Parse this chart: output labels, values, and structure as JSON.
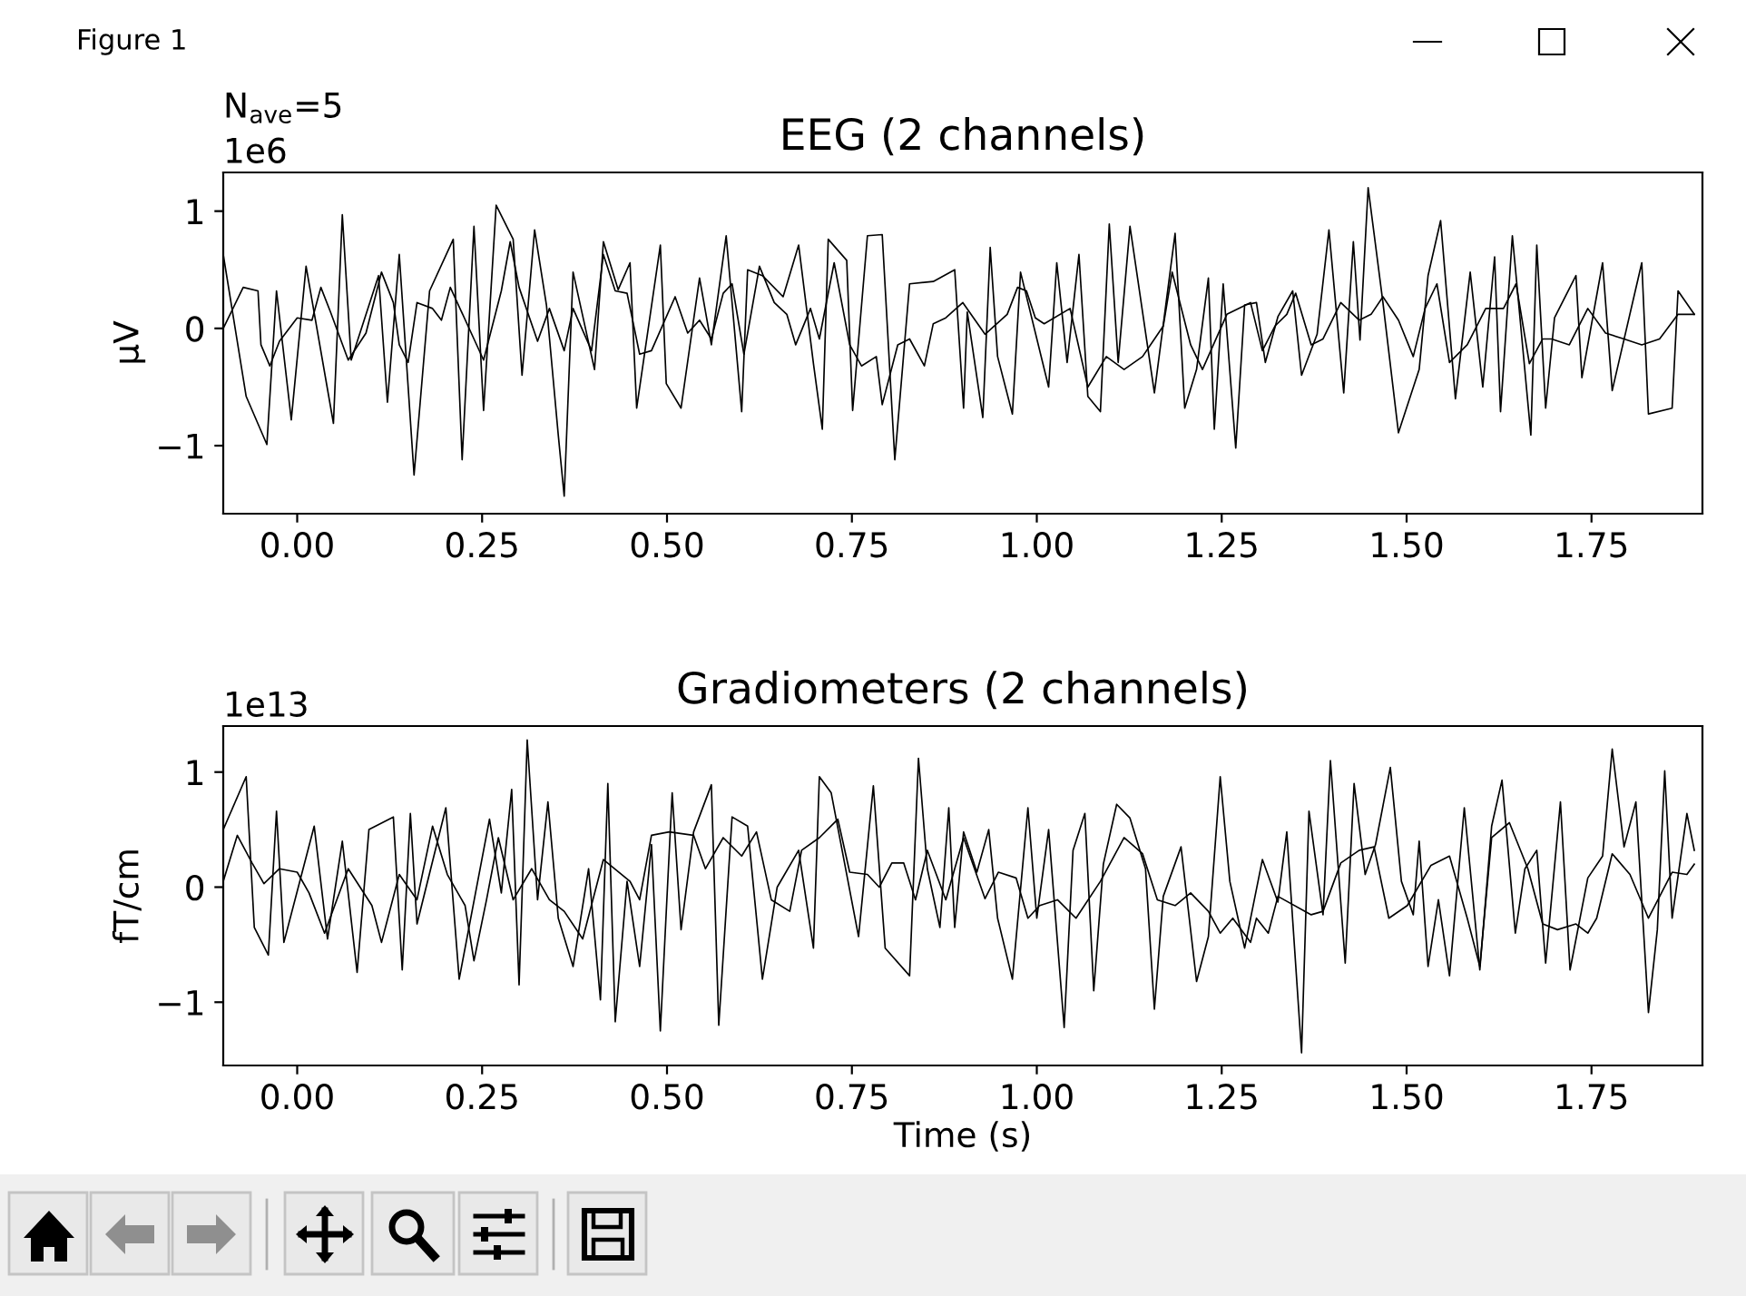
{
  "chart_data": [
    {
      "type": "line",
      "title": "EEG (2 channels)",
      "ylabel": "µV",
      "annotations": [
        "Figure 1",
        "N$_{ave}$=5",
        "1e6"
      ],
      "xlim": [
        -0.1,
        1.9
      ],
      "ylim": [
        -1.58,
        1.33
      ],
      "xticks": [
        {
          "value": 0,
          "label": "0.00"
        },
        {
          "value": 0.25,
          "label": "0.25"
        },
        {
          "value": 0.5,
          "label": "0.50"
        },
        {
          "value": 0.75,
          "label": "0.75"
        },
        {
          "value": 1,
          "label": "1.00"
        },
        {
          "value": 1.25,
          "label": "1.25"
        },
        {
          "value": 1.5,
          "label": "1.50"
        },
        {
          "value": 1.75,
          "label": "1.75"
        }
      ],
      "yticks": [
        {
          "value": -1,
          "label": "−1"
        },
        0,
        1
      ],
      "series": [
        {
          "color": "#000000",
          "x": [
            -0.1,
            -0.069,
            -0.041,
            -0.028,
            -0.008,
            0.012,
            0.049,
            0.061,
            0.073,
            0.11,
            0.122,
            0.138,
            0.158,
            0.179,
            0.211,
            0.223,
            0.239,
            0.252,
            0.269,
            0.292,
            0.304,
            0.321,
            0.337,
            0.353,
            0.361,
            0.373,
            0.402,
            0.414,
            0.434,
            0.45,
            0.459,
            0.491,
            0.499,
            0.519,
            0.544,
            0.56,
            0.58,
            0.601,
            0.609,
            0.629,
            0.657,
            0.678,
            0.698,
            0.71,
            0.718,
            0.743,
            0.751,
            0.771,
            0.791,
            0.808,
            0.828,
            0.86,
            0.889,
            0.901,
            0.906,
            0.927,
            0.937,
            0.947,
            0.967,
            0.978,
            1.016,
            1.027,
            1.041,
            1.057,
            1.069,
            1.086,
            1.098,
            1.11,
            1.126,
            1.159,
            1.187,
            1.2,
            1.216,
            1.232,
            1.24,
            1.252,
            1.269,
            1.281,
            1.297,
            1.309,
            1.326,
            1.346,
            1.358,
            1.379,
            1.395,
            1.415,
            1.428,
            1.437,
            1.448,
            1.468,
            1.489,
            1.517,
            1.529,
            1.546,
            1.566,
            1.586,
            1.603,
            1.619,
            1.627,
            1.643,
            1.668,
            1.676,
            1.688,
            1.7,
            1.729,
            1.737,
            1.765,
            1.778,
            1.818,
            1.827,
            1.859,
            1.867,
            1.889
          ],
          "values": [
            0.63,
            -0.58,
            -0.99,
            0.32,
            -0.78,
            0.53,
            -0.81,
            0.97,
            -0.27,
            0.45,
            -0.63,
            0.63,
            -1.25,
            0.32,
            0.76,
            -1.12,
            0.87,
            -0.7,
            1.05,
            0.76,
            -0.4,
            0.84,
            0.2,
            -0.91,
            -1.43,
            0.48,
            -0.35,
            0.74,
            0.33,
            0.56,
            -0.68,
            0.71,
            -0.47,
            -0.68,
            0.43,
            -0.14,
            0.79,
            -0.71,
            0.5,
            0.45,
            0.27,
            0.71,
            -0.3,
            -0.86,
            0.76,
            0.58,
            -0.7,
            0.79,
            0.8,
            -1.12,
            0.38,
            0.4,
            0.5,
            -0.68,
            0.14,
            -0.76,
            0.69,
            -0.24,
            -0.73,
            0.48,
            -0.5,
            0.56,
            -0.29,
            0.63,
            -0.58,
            -0.71,
            0.89,
            -0.29,
            0.87,
            -0.55,
            0.81,
            -0.68,
            -0.35,
            0.43,
            -0.86,
            0.38,
            -1.02,
            0.2,
            0.22,
            -0.29,
            0.1,
            0.32,
            -0.4,
            -0.05,
            0.84,
            -0.55,
            0.74,
            -0.1,
            1.2,
            0.22,
            -0.89,
            -0.35,
            0.45,
            0.92,
            -0.6,
            0.48,
            -0.5,
            0.61,
            -0.71,
            0.79,
            -0.91,
            0.71,
            -0.68,
            0.09,
            0.45,
            -0.42,
            0.56,
            -0.53,
            0.56,
            -0.73,
            -0.68,
            0.32,
            0.12
          ]
        },
        {
          "color": "#000000",
          "x": [
            -0.1,
            -0.073,
            -0.053,
            -0.049,
            -0.037,
            -0.024,
            0.0,
            0.02,
            0.032,
            0.045,
            0.069,
            0.093,
            0.114,
            0.13,
            0.138,
            0.15,
            0.162,
            0.183,
            0.195,
            0.207,
            0.239,
            0.252,
            0.276,
            0.288,
            0.3,
            0.325,
            0.341,
            0.361,
            0.373,
            0.398,
            0.414,
            0.43,
            0.446,
            0.463,
            0.479,
            0.495,
            0.511,
            0.528,
            0.544,
            0.56,
            0.576,
            0.588,
            0.604,
            0.625,
            0.645,
            0.662,
            0.674,
            0.694,
            0.706,
            0.726,
            0.747,
            0.763,
            0.783,
            0.791,
            0.812,
            0.828,
            0.848,
            0.86,
            0.877,
            0.9,
            0.93,
            0.96,
            0.974,
            0.986,
            0.998,
            1.01,
            1.045,
            1.069,
            1.094,
            1.118,
            1.143,
            1.171,
            1.183,
            1.208,
            1.224,
            1.257,
            1.289,
            1.305,
            1.322,
            1.338,
            1.35,
            1.371,
            1.387,
            1.411,
            1.436,
            1.452,
            1.468,
            1.489,
            1.509,
            1.525,
            1.541,
            1.558,
            1.582,
            1.607,
            1.631,
            1.648,
            1.666,
            1.684,
            1.696,
            1.72,
            1.745,
            1.769,
            1.794,
            1.818,
            1.842,
            1.867,
            1.889
          ],
          "values": [
            0.0,
            0.35,
            0.32,
            -0.14,
            -0.32,
            -0.11,
            0.09,
            0.07,
            0.35,
            0.14,
            -0.27,
            -0.04,
            0.48,
            0.22,
            -0.14,
            -0.29,
            0.22,
            0.17,
            0.07,
            0.35,
            -0.09,
            -0.27,
            0.32,
            0.74,
            0.35,
            -0.11,
            0.17,
            -0.19,
            0.17,
            -0.19,
            0.63,
            0.32,
            0.3,
            -0.22,
            -0.19,
            0.04,
            0.27,
            -0.04,
            0.07,
            -0.09,
            0.3,
            0.38,
            -0.22,
            0.53,
            0.22,
            0.12,
            -0.14,
            0.17,
            -0.09,
            0.56,
            -0.14,
            -0.32,
            -0.24,
            -0.65,
            -0.14,
            -0.09,
            -0.32,
            0.04,
            0.09,
            0.22,
            -0.05,
            0.12,
            0.35,
            0.32,
            0.09,
            0.04,
            0.17,
            -0.5,
            -0.24,
            -0.35,
            -0.24,
            0.02,
            0.48,
            -0.14,
            -0.35,
            0.12,
            0.22,
            -0.19,
            0.02,
            0.12,
            0.3,
            -0.14,
            -0.09,
            0.22,
            0.07,
            0.12,
            0.27,
            0.07,
            -0.24,
            0.17,
            0.38,
            -0.29,
            -0.14,
            0.17,
            0.17,
            0.38,
            -0.3,
            -0.09,
            -0.09,
            -0.14,
            0.17,
            -0.04,
            -0.09,
            -0.14,
            -0.09,
            0.12,
            0.12
          ]
        }
      ]
    },
    {
      "type": "line",
      "title": "Gradiometers (2 channels)",
      "xlabel": "Time (s)",
      "ylabel": "fT/cm",
      "annotations": [
        "1e13"
      ],
      "xlim": [
        -0.1,
        1.9
      ],
      "ylim": [
        -1.55,
        1.4
      ],
      "xticks": [
        {
          "value": 0,
          "label": "0.00"
        },
        {
          "value": 0.25,
          "label": "0.25"
        },
        {
          "value": 0.5,
          "label": "0.50"
        },
        {
          "value": 0.75,
          "label": "0.75"
        },
        {
          "value": 1,
          "label": "1.00"
        },
        {
          "value": 1.25,
          "label": "1.25"
        },
        {
          "value": 1.5,
          "label": "1.50"
        },
        {
          "value": 1.75,
          "label": "1.75"
        }
      ],
      "yticks": [
        {
          "value": -1,
          "label": "−1"
        },
        0,
        1
      ],
      "series": [
        {
          "color": "#000000",
          "x": [
            -0.1,
            -0.069,
            -0.058,
            -0.039,
            -0.028,
            -0.018,
            0.023,
            0.041,
            0.061,
            0.081,
            0.097,
            0.13,
            0.142,
            0.153,
            0.162,
            0.201,
            0.219,
            0.26,
            0.276,
            0.29,
            0.3,
            0.311,
            0.325,
            0.339,
            0.353,
            0.373,
            0.394,
            0.41,
            0.42,
            0.43,
            0.446,
            0.463,
            0.479,
            0.491,
            0.507,
            0.519,
            0.536,
            0.56,
            0.57,
            0.588,
            0.609,
            0.629,
            0.649,
            0.678,
            0.698,
            0.706,
            0.722,
            0.759,
            0.779,
            0.795,
            0.828,
            0.84,
            0.852,
            0.869,
            0.881,
            0.889,
            0.901,
            0.919,
            0.935,
            0.947,
            0.967,
            0.988,
            1.0,
            1.016,
            1.037,
            1.049,
            1.065,
            1.077,
            1.09,
            1.108,
            1.126,
            1.147,
            1.159,
            1.171,
            1.195,
            1.216,
            1.232,
            1.248,
            1.261,
            1.281,
            1.305,
            1.326,
            1.338,
            1.358,
            1.368,
            1.387,
            1.397,
            1.417,
            1.429,
            1.444,
            1.458,
            1.478,
            1.493,
            1.509,
            1.517,
            1.529,
            1.543,
            1.558,
            1.578,
            1.599,
            1.615,
            1.629,
            1.647,
            1.66,
            1.676,
            1.688,
            1.708,
            1.721,
            1.745,
            1.765,
            1.778,
            1.794,
            1.81,
            1.827,
            1.839,
            1.849,
            1.859,
            1.879,
            1.889
          ],
          "values": [
            0.5,
            0.96,
            -0.35,
            -0.59,
            0.66,
            -0.48,
            0.53,
            -0.45,
            0.4,
            -0.74,
            0.5,
            0.61,
            -0.72,
            0.64,
            -0.32,
            0.69,
            -0.8,
            0.59,
            -0.05,
            0.85,
            -0.85,
            1.28,
            -0.11,
            0.74,
            -0.27,
            -0.69,
            0.16,
            -0.98,
            0.9,
            -1.17,
            0.05,
            -0.69,
            0.37,
            -1.25,
            0.82,
            -0.37,
            0.48,
            0.89,
            -1.2,
            0.61,
            0.53,
            -0.8,
            0.0,
            0.32,
            -0.53,
            0.96,
            0.82,
            -0.43,
            0.88,
            -0.53,
            -0.77,
            1.12,
            0.16,
            -0.35,
            0.69,
            -0.35,
            0.48,
            0.13,
            0.5,
            -0.27,
            -0.8,
            0.69,
            -0.27,
            0.5,
            -1.22,
            0.32,
            0.64,
            -0.9,
            0.2,
            0.72,
            0.6,
            0.16,
            -1.06,
            -0.08,
            0.35,
            -0.82,
            -0.43,
            0.96,
            0.05,
            -0.53,
            0.24,
            -0.13,
            0.48,
            -1.44,
            0.66,
            -0.24,
            1.1,
            -0.66,
            0.9,
            0.11,
            0.37,
            1.04,
            0.05,
            -0.24,
            0.4,
            -0.69,
            -0.11,
            -0.77,
            0.69,
            -0.72,
            0.53,
            0.93,
            -0.4,
            0.16,
            0.32,
            -0.66,
            0.74,
            -0.72,
            0.08,
            0.27,
            1.2,
            0.35,
            0.74,
            -1.09,
            -0.37,
            1.01,
            -0.27,
            0.64,
            0.32
          ]
        },
        {
          "color": "#000000",
          "x": [
            -0.1,
            -0.081,
            -0.061,
            -0.045,
            -0.024,
            0.0,
            0.016,
            0.037,
            0.057,
            0.069,
            0.101,
            0.114,
            0.138,
            0.162,
            0.183,
            0.203,
            0.227,
            0.239,
            0.256,
            0.272,
            0.292,
            0.317,
            0.341,
            0.361,
            0.386,
            0.414,
            0.45,
            0.463,
            0.479,
            0.503,
            0.536,
            0.552,
            0.576,
            0.601,
            0.621,
            0.641,
            0.666,
            0.682,
            0.706,
            0.731,
            0.747,
            0.771,
            0.787,
            0.804,
            0.82,
            0.836,
            0.852,
            0.877,
            0.901,
            0.93,
            0.948,
            0.972,
            0.988,
            1.004,
            1.028,
            1.053,
            1.086,
            1.118,
            1.143,
            1.163,
            1.187,
            1.208,
            1.232,
            1.248,
            1.265,
            1.289,
            1.297,
            1.313,
            1.326,
            1.371,
            1.387,
            1.411,
            1.436,
            1.456,
            1.476,
            1.501,
            1.533,
            1.558,
            1.582,
            1.599,
            1.615,
            1.639,
            1.664,
            1.684,
            1.704,
            1.729,
            1.745,
            1.757,
            1.778,
            1.802,
            1.827,
            1.859,
            1.879,
            1.889
          ],
          "values": [
            0.05,
            0.45,
            0.21,
            0.03,
            0.16,
            0.13,
            -0.05,
            -0.4,
            -0.05,
            0.16,
            -0.16,
            -0.48,
            0.11,
            -0.11,
            0.53,
            0.11,
            -0.16,
            -0.64,
            -0.11,
            0.43,
            -0.11,
            0.16,
            -0.11,
            -0.21,
            -0.45,
            0.24,
            0.05,
            -0.11,
            0.45,
            0.48,
            0.45,
            0.16,
            0.43,
            0.27,
            0.48,
            -0.11,
            -0.21,
            0.32,
            0.43,
            0.59,
            0.13,
            0.11,
            0.0,
            0.21,
            0.21,
            -0.11,
            0.32,
            -0.11,
            0.43,
            -0.1,
            0.13,
            0.08,
            -0.27,
            -0.16,
            -0.11,
            -0.27,
            0.05,
            0.43,
            0.29,
            -0.11,
            -0.16,
            -0.05,
            -0.21,
            -0.4,
            -0.27,
            -0.48,
            -0.27,
            -0.4,
            -0.08,
            -0.24,
            -0.21,
            0.21,
            0.32,
            0.35,
            -0.27,
            -0.16,
            0.19,
            0.27,
            -0.27,
            -0.69,
            0.43,
            0.56,
            0.16,
            -0.32,
            -0.37,
            -0.32,
            -0.4,
            -0.27,
            0.29,
            0.11,
            -0.27,
            0.13,
            0.11,
            0.2
          ]
        }
      ]
    }
  ]
}
